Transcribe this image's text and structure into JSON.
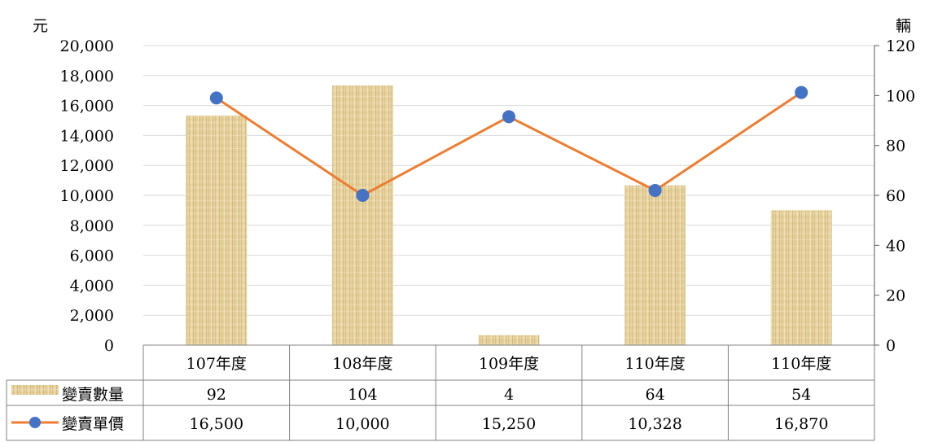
{
  "chart_data": {
    "type": "bar+line",
    "categories": [
      "107年度",
      "108年度",
      "109年度",
      "110年度",
      "110年度"
    ],
    "left_axis": {
      "unit_label": "元",
      "ylim": [
        0,
        20000
      ],
      "ticks": [
        "0",
        "2,000",
        "4,000",
        "6,000",
        "8,000",
        "10,000",
        "12,000",
        "14,000",
        "16,000",
        "18,000",
        "20,000"
      ]
    },
    "right_axis": {
      "unit_label": "輛",
      "ylim": [
        0,
        120
      ],
      "ticks": [
        "0",
        "20",
        "40",
        "60",
        "80",
        "100",
        "120"
      ]
    },
    "series": [
      {
        "name": "變賣數量",
        "type": "bar",
        "axis": "right",
        "values": [
          92,
          104,
          4,
          64,
          54
        ],
        "value_labels": [
          "92",
          "104",
          "4",
          "64",
          "54"
        ],
        "color": "#e3cf9a"
      },
      {
        "name": "變賣單價",
        "type": "line",
        "axis": "left",
        "values": [
          16500,
          10000,
          15250,
          10328,
          16870
        ],
        "value_labels": [
          "16,500",
          "10,000",
          "15,250",
          "10,328",
          "16,870"
        ],
        "color": "#ed7d31",
        "marker_color": "#4472c4"
      }
    ],
    "grid": true,
    "legend": "data-table"
  }
}
